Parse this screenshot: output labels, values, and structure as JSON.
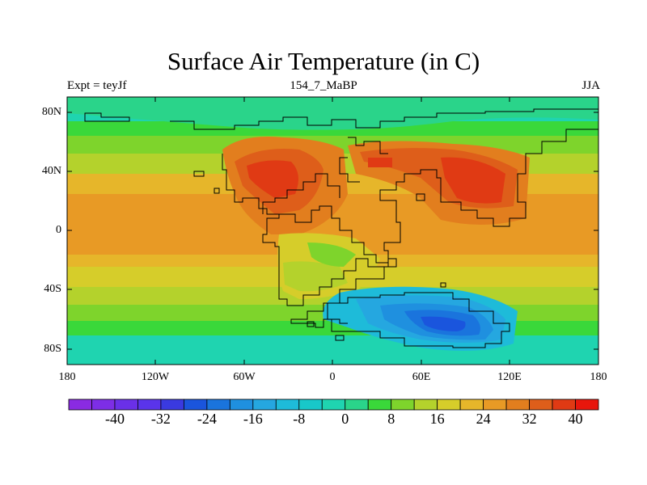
{
  "title": "Surface Air Temperature (in C)",
  "left_subtitle": "Expt = teyJf",
  "center_subtitle": "154_7_MaBP",
  "right_subtitle": "JJA",
  "lat_labels": [
    "80N",
    "40N",
    "0",
    "40S",
    "80S"
  ],
  "lon_labels": [
    "180",
    "120W",
    "60W",
    "0",
    "60E",
    "120E",
    "180"
  ],
  "colorbar": {
    "labels": [
      "-40",
      "-32",
      "-24",
      "-16",
      "-8",
      "0",
      "8",
      "16",
      "24",
      "32",
      "40"
    ],
    "colors": [
      "#8a2be2",
      "#7d2ee6",
      "#6a30e8",
      "#5a34ea",
      "#3a3ae0",
      "#1a55dd",
      "#1a74dd",
      "#1f90df",
      "#25a7e0",
      "#1ebbd9",
      "#18c8c9",
      "#1fd4b0",
      "#2ad48a",
      "#3ad83a",
      "#7ed42c",
      "#b4d22c",
      "#d6cd2a",
      "#e6b62a",
      "#e89a25",
      "#e27e1e",
      "#de5e1a",
      "#e03a14",
      "#e8160c"
    ]
  },
  "chart_data": {
    "type": "heatmap",
    "title": "Surface Air Temperature (in C)",
    "units": "C",
    "season": "JJA",
    "experiment": "teyJf",
    "period": "154_7_MaBP",
    "lon_range": [
      -180,
      180
    ],
    "lat_range": [
      -90,
      90
    ],
    "value_range": [
      -44,
      44
    ],
    "contour_interval": 4,
    "features": [
      {
        "region": "northern continent interior 40N",
        "value": 40
      },
      {
        "region": "equatorial ocean",
        "value": 26
      },
      {
        "region": "southern ocean 80S",
        "value": 0
      },
      {
        "region": "south polar continent 60S 60E-100E",
        "value": -24
      }
    ]
  }
}
